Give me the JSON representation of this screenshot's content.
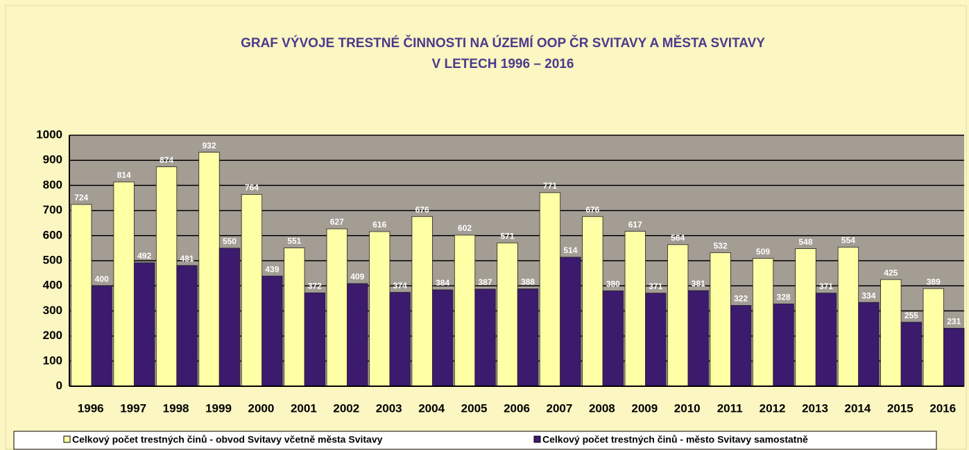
{
  "chart_data": {
    "type": "bar",
    "title": "GRAF VÝVOJE TRESTNÉ ČINNOSTI NA ÚZEMÍ OOP ČR SVITAVY A MĚSTA SVITAVY",
    "subtitle": "V LETECH 1996 – 2016",
    "categories": [
      "1996",
      "1997",
      "1998",
      "1999",
      "2000",
      "2001",
      "2002",
      "2003",
      "2004",
      "2005",
      "2006",
      "2007",
      "2008",
      "2009",
      "2010",
      "2011",
      "2012",
      "2013",
      "2014",
      "2015",
      "2016"
    ],
    "series": [
      {
        "name": "Celkový počet trestných činů - obvod Svitavy včetně města Svitavy",
        "color": "#ffffa6",
        "values": [
          724,
          814,
          874,
          932,
          764,
          551,
          627,
          616,
          676,
          602,
          571,
          771,
          676,
          617,
          564,
          532,
          509,
          548,
          554,
          425,
          389
        ]
      },
      {
        "name": "Celkový počet trestných činů - město Svitavy samostatně",
        "color": "#3c1a6e",
        "values": [
          400,
          492,
          481,
          550,
          439,
          372,
          409,
          374,
          384,
          387,
          388,
          514,
          380,
          371,
          381,
          322,
          328,
          371,
          334,
          255,
          231
        ]
      }
    ],
    "ylim": [
      0,
      1000
    ],
    "yticks": [
      0,
      100,
      200,
      300,
      400,
      500,
      600,
      700,
      800,
      900,
      1000
    ],
    "grid": true
  }
}
